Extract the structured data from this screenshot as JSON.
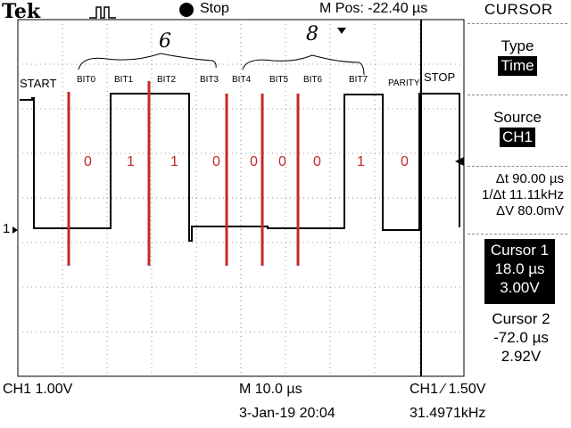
{
  "header": {
    "brand": "Tek",
    "trigger_state": "Stop",
    "position": "M Pos: -22.40 µs",
    "menu_title": "CURSOR"
  },
  "menu": {
    "type_label": "Type",
    "type_value": "Time",
    "source_label": "Source",
    "source_value": "CH1",
    "delta_t": "Δt 90.00 µs",
    "inv_delta_t": "1/Δt 11.11kHz",
    "delta_v": "ΔV 80.0mV",
    "cursor1": {
      "label": "Cursor 1",
      "time": "18.0 µs",
      "volt": "3.00V"
    },
    "cursor2": {
      "label": "Cursor 2",
      "time": "-72.0 µs",
      "volt": "2.92V"
    }
  },
  "footer": {
    "ch1_scale": "CH1  1.00V",
    "timebase": "M 10.0 µs",
    "trigger": "CH1 ∕ 1.50V",
    "date": "3-Jan-19 20:04",
    "frequency": "31.4971kHz"
  },
  "annotations": {
    "start": "START",
    "stop": "STOP",
    "parity": "PARITY",
    "bit_labels": [
      "BIT0",
      "BIT1",
      "BIT2",
      "BIT3",
      "BIT4",
      "BIT5",
      "BIT6",
      "BIT7"
    ],
    "bit_values": [
      "0",
      "1",
      "1",
      "0",
      "0",
      "0",
      "0",
      "1",
      "0"
    ],
    "handwritten_low": "6",
    "handwritten_high": "8",
    "channel_marker": "1"
  },
  "colors": {
    "annotation": "#c62828",
    "trace": "#000000",
    "grid": "#9a9a9a"
  }
}
